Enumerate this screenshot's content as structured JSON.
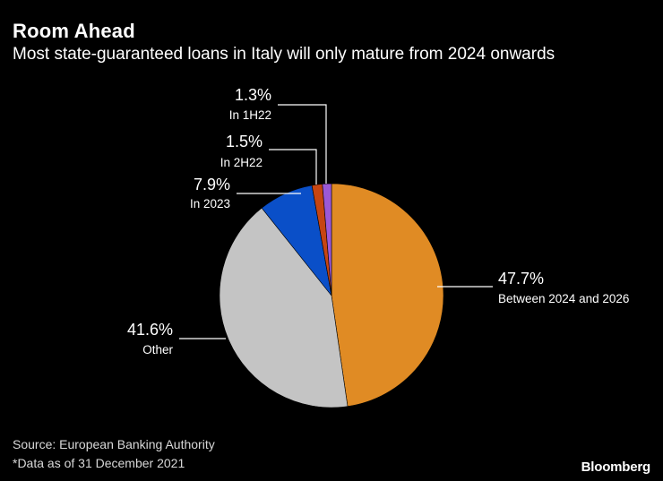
{
  "header": {
    "title": "Room Ahead",
    "subtitle": "Most state-guaranteed loans in Italy will only mature from 2024 onwards"
  },
  "chart_data": {
    "type": "pie",
    "title": "Room Ahead",
    "subtitle": "Most state-guaranteed loans in Italy will only mature from 2024 onwards",
    "slices": [
      {
        "label": "Between 2024 and 2026",
        "value": 47.7,
        "value_label": "47.7%",
        "color": "#e08b24"
      },
      {
        "label": "Other",
        "value": 41.6,
        "value_label": "41.6%",
        "color": "#c4c4c4"
      },
      {
        "label": "In 2023",
        "value": 7.9,
        "value_label": "7.9%",
        "color": "#0a4fc8"
      },
      {
        "label": "In 2H22",
        "value": 1.5,
        "value_label": "1.5%",
        "color": "#c64512"
      },
      {
        "label": "In 1H22",
        "value": 1.3,
        "value_label": "1.3%",
        "color": "#9b59d6"
      }
    ]
  },
  "footer": {
    "source": "Source: European Banking Authority",
    "note": "*Data as of 31 December 2021",
    "brand": "Bloomberg"
  }
}
